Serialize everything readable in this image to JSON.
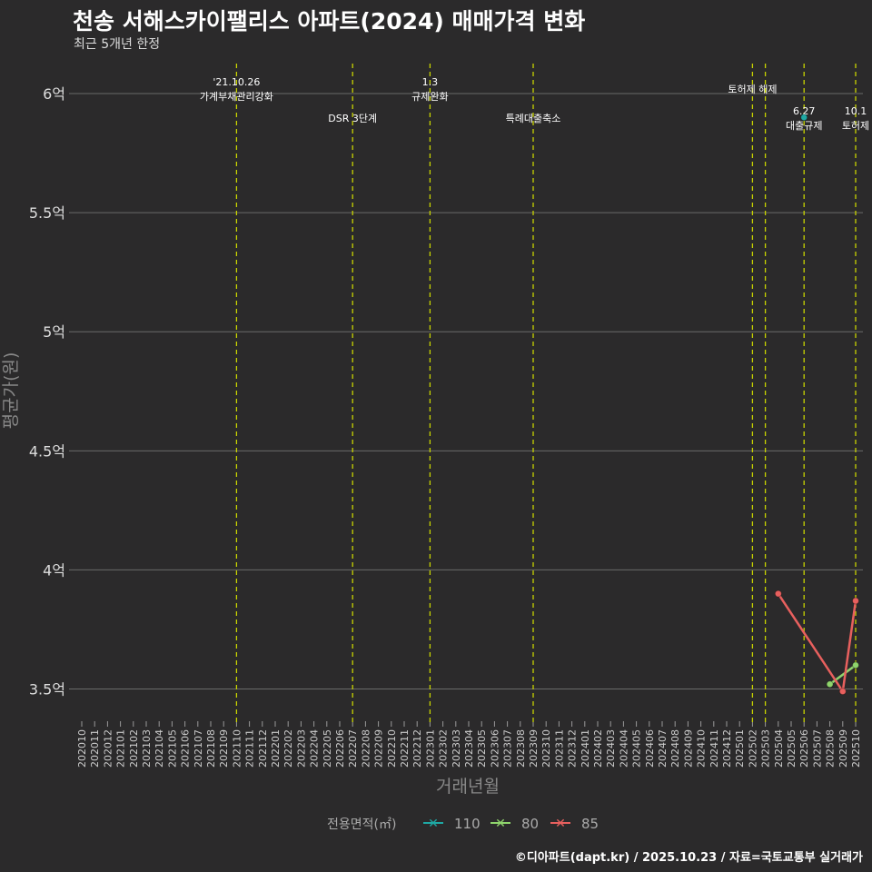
{
  "title": "천송 서해스카이팰리스 아파트(2024) 매매가격 변화",
  "subtitle": "최근 5개년 한정",
  "caption": "©디아파트(dapt.kr) / 2025.10.23 / 자료=국토교통부 실거래가",
  "colors": {
    "110": "#1fa8a4",
    "80": "#8fd46c",
    "85": "#e8605e",
    "vline": "#c8d400",
    "grid": "#6a6a6a"
  },
  "chart_data": {
    "type": "line",
    "title": "천송 서해스카이팰리스 아파트(2024) 매매가격 변화",
    "xlabel": "거래년월",
    "ylabel": "평균가(원)",
    "ylim": [
      3.38,
      6.126
    ],
    "y_ticks": [
      {
        "v": 3.5,
        "label": "3.5억"
      },
      {
        "v": 4,
        "label": "4억"
      },
      {
        "v": 4.5,
        "label": "4.5억"
      },
      {
        "v": 5,
        "label": "5억"
      },
      {
        "v": 5.5,
        "label": "5.5억"
      },
      {
        "v": 6,
        "label": "6억"
      }
    ],
    "x_categories": [
      "202010",
      "202011",
      "202012",
      "202101",
      "202102",
      "202103",
      "202104",
      "202105",
      "202106",
      "202107",
      "202108",
      "202109",
      "202110",
      "202111",
      "202112",
      "202201",
      "202202",
      "202203",
      "202204",
      "202205",
      "202206",
      "202207",
      "202208",
      "202209",
      "202210",
      "202211",
      "202212",
      "202301",
      "202302",
      "202303",
      "202304",
      "202305",
      "202306",
      "202307",
      "202308",
      "202309",
      "202310",
      "202311",
      "202312",
      "202401",
      "202402",
      "202403",
      "202404",
      "202405",
      "202406",
      "202407",
      "202408",
      "202409",
      "202410",
      "202411",
      "202412",
      "202501",
      "202502",
      "202503",
      "202504",
      "202505",
      "202506",
      "202507",
      "202508",
      "202509",
      "202510"
    ],
    "legend_title": "전용면적(㎡)",
    "legend_position": "bottom",
    "series": [
      {
        "name": "110",
        "points": [
          {
            "x": "202506",
            "y": 5.9
          }
        ]
      },
      {
        "name": "80",
        "points": [
          {
            "x": "202508",
            "y": 3.52
          },
          {
            "x": "202510",
            "y": 3.6
          }
        ]
      },
      {
        "name": "85",
        "points": [
          {
            "x": "202504",
            "y": 3.9
          },
          {
            "x": "202509",
            "y": 3.49
          },
          {
            "x": "202510",
            "y": 3.87
          }
        ]
      }
    ],
    "events": [
      {
        "x": "202110",
        "lines": [
          "'21.10.26",
          "가계부채관리강화"
        ],
        "row": 0
      },
      {
        "x": "202207",
        "lines": [
          "DSR 3단계"
        ],
        "row": 1
      },
      {
        "x": "202301",
        "lines": [
          "1.3",
          "규제완화"
        ],
        "row": 0
      },
      {
        "x": "202309",
        "lines": [
          "특례대출축소"
        ],
        "row": 1
      },
      {
        "x": "202502",
        "lines": [
          "토허제 해제"
        ],
        "row": 0
      },
      {
        "x": "202503",
        "lines": [],
        "row": 0
      },
      {
        "x": "202506",
        "lines": [
          "6.27",
          "대출규제"
        ],
        "row": 1
      },
      {
        "x": "202510",
        "lines": [
          "10.1",
          "토허제"
        ],
        "row": 1
      }
    ]
  }
}
